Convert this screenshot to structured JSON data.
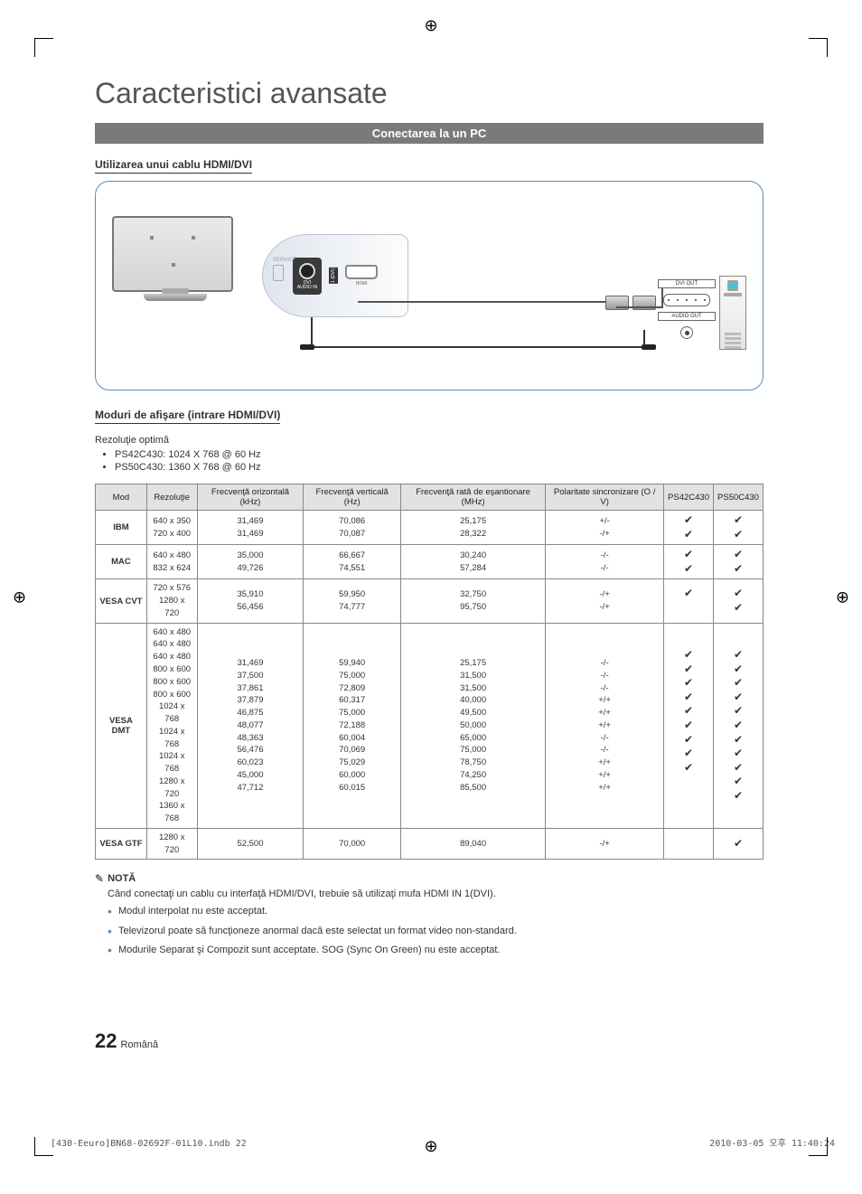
{
  "title": "Caracteristici avansate",
  "section_bar": "Conectarea la un PC",
  "subsection1": "Utilizarea unui cablu HDMI/DVI",
  "diagram": {
    "service": "SERVICE",
    "dvi_audio": "DVI\nAUDIO IN",
    "hdmi": "HDMI",
    "dvi_out": "DVI OUT",
    "audio_out": "AUDIO OUT",
    "hdmi_side": "1 (DVI)"
  },
  "subsection2": "Moduri de afişare (intrare HDMI/DVI)",
  "optimal": "Rezoluţie optimă",
  "optimal_items": [
    "PS42C430: 1024 X 768 @ 60 Hz",
    "PS50C430: 1360 X 768 @ 60 Hz"
  ],
  "table": {
    "headers": [
      "Mod",
      "Rezoluţie",
      "Frecvenţă orizontală (kHz)",
      "Frecvenţă verticală (Hz)",
      "Frecvenţă rată de eşantionare (MHz)",
      "Polaritate sincronizare (O / V)",
      "PS42C430",
      "PS50C430"
    ],
    "rows": [
      {
        "mode": "IBM",
        "res": [
          "640 x 350",
          "720 x 400"
        ],
        "fh": [
          "31,469",
          "31,469"
        ],
        "fv": [
          "70,086",
          "70,087"
        ],
        "px": [
          "25,175",
          "28,322"
        ],
        "pol": [
          "+/-",
          "-/+"
        ],
        "p42": [
          "c",
          "c"
        ],
        "p50": [
          "c",
          "c"
        ]
      },
      {
        "mode": "MAC",
        "res": [
          "640 x 480",
          "832 x 624"
        ],
        "fh": [
          "35,000",
          "49,726"
        ],
        "fv": [
          "66,667",
          "74,551"
        ],
        "px": [
          "30,240",
          "57,284"
        ],
        "pol": [
          "-/-",
          "-/-"
        ],
        "p42": [
          "c",
          "c"
        ],
        "p50": [
          "c",
          "c"
        ]
      },
      {
        "mode": "VESA CVT",
        "res": [
          "720 x 576",
          "1280 x 720"
        ],
        "fh": [
          "35,910",
          "56,456"
        ],
        "fv": [
          "59,950",
          "74,777"
        ],
        "px": [
          "32,750",
          "95,750"
        ],
        "pol": [
          "-/+",
          "-/+"
        ],
        "p42": [
          "c",
          ""
        ],
        "p50": [
          "c",
          "c"
        ]
      },
      {
        "mode": "VESA DMT",
        "res": [
          "640 x 480",
          "640 x 480",
          "640 x 480",
          "800 x 600",
          "800 x 600",
          "800 x 600",
          "1024 x 768",
          "1024 x 768",
          "1024 x 768",
          "1280 x 720",
          "1360 x 768"
        ],
        "fh": [
          "31,469",
          "37,500",
          "37,861",
          "37,879",
          "46,875",
          "48,077",
          "48,363",
          "56,476",
          "60,023",
          "45,000",
          "47,712"
        ],
        "fv": [
          "59,940",
          "75,000",
          "72,809",
          "60,317",
          "75,000",
          "72,188",
          "60,004",
          "70,069",
          "75,029",
          "60,000",
          "60,015"
        ],
        "px": [
          "25,175",
          "31,500",
          "31,500",
          "40,000",
          "49,500",
          "50,000",
          "65,000",
          "75,000",
          "78,750",
          "74,250",
          "85,500"
        ],
        "pol": [
          "-/-",
          "-/-",
          "-/-",
          "+/+",
          "+/+",
          "+/+",
          "-/-",
          "-/-",
          "+/+",
          "+/+",
          "+/+"
        ],
        "p42": [
          "c",
          "c",
          "c",
          "c",
          "c",
          "c",
          "c",
          "c",
          "c",
          "",
          ""
        ],
        "p50": [
          "c",
          "c",
          "c",
          "c",
          "c",
          "c",
          "c",
          "c",
          "c",
          "c",
          "c"
        ]
      },
      {
        "mode": "VESA GTF",
        "res": [
          "1280 x 720"
        ],
        "fh": [
          "52,500"
        ],
        "fv": [
          "70,000"
        ],
        "px": [
          "89,040"
        ],
        "pol": [
          "-/+"
        ],
        "p42": [
          ""
        ],
        "p50": [
          "c"
        ]
      }
    ]
  },
  "note_heading": "NOTĂ",
  "note_main": "Când conectaţi un cablu cu interfaţă HDMI/DVI, trebuie să utilizaţi mufa HDMI IN 1(DVI).",
  "note_items": [
    "Modul interpolat nu este acceptat.",
    "Televizorul poate să funcţioneze anormal dacă este selectat un format video non-standard.",
    "Modurile Separat şi Compozit sunt acceptate. SOG (Sync On Green) nu este acceptat."
  ],
  "page": {
    "number": "22",
    "lang": "Română"
  },
  "footer": {
    "left": "[430-Eeuro]BN68-02692F-01L10.indb   22",
    "right": "2010-03-05   오후 11:40:24"
  }
}
